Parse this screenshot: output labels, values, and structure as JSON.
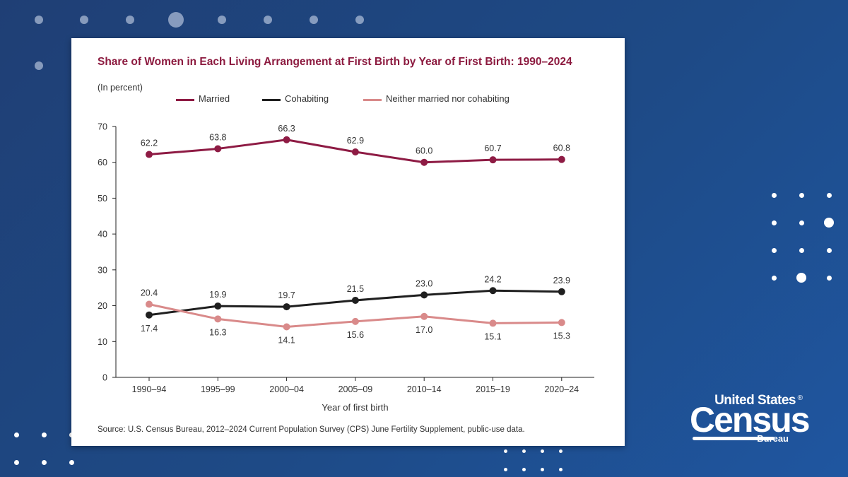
{
  "colors": {
    "married": "#8e1b44",
    "cohabiting": "#1f1f1f",
    "neither": "#d98a8a",
    "title": "#8c1a3f"
  },
  "card": {
    "title": "Share of Women in Each Living Arrangement at First Birth by Year of First Birth: 1990–2024",
    "subtitle": "(In percent)",
    "source": "Source: U.S. Census Bureau, 2012–2024 Current Population Survey (CPS) June Fertility Supplement, public-use data."
  },
  "logo": {
    "top": "United States",
    "registered": "®",
    "main": "Census",
    "bottom": "Bureau"
  },
  "chart_data": {
    "type": "line",
    "title": "Share of Women in Each Living Arrangement at First Birth by Year of First Birth: 1990–2024",
    "subtitle": "(In percent)",
    "xlabel": "Year of first birth",
    "ylabel": "",
    "ylim": [
      0,
      70
    ],
    "yticks": [
      "0",
      "10",
      "20",
      "30",
      "40",
      "50",
      "60",
      "70"
    ],
    "categories": [
      "1990–94",
      "1995–99",
      "2000–04",
      "2005–09",
      "2010–14",
      "2015–19",
      "2020–24"
    ],
    "series": [
      {
        "name": "Married",
        "key": "married",
        "values": [
          62.2,
          63.8,
          66.3,
          62.9,
          60.0,
          60.7,
          60.8
        ],
        "labels": [
          "62.2",
          "63.8",
          "66.3",
          "62.9",
          "60.0",
          "60.7",
          "60.8"
        ]
      },
      {
        "name": "Cohabiting",
        "key": "cohabiting",
        "values": [
          17.4,
          19.9,
          19.7,
          21.5,
          23.0,
          24.2,
          23.9
        ],
        "labels": [
          "17.4",
          "19.9",
          "19.7",
          "21.5",
          "23.0",
          "24.2",
          "23.9"
        ]
      },
      {
        "name": "Neither married nor cohabiting",
        "key": "neither",
        "values": [
          20.4,
          16.3,
          14.1,
          15.6,
          17.0,
          15.1,
          15.3
        ],
        "labels": [
          "20.4",
          "16.3",
          "14.1",
          "15.6",
          "17.0",
          "15.1",
          "15.3"
        ]
      }
    ],
    "legend": "top",
    "grid": false
  }
}
